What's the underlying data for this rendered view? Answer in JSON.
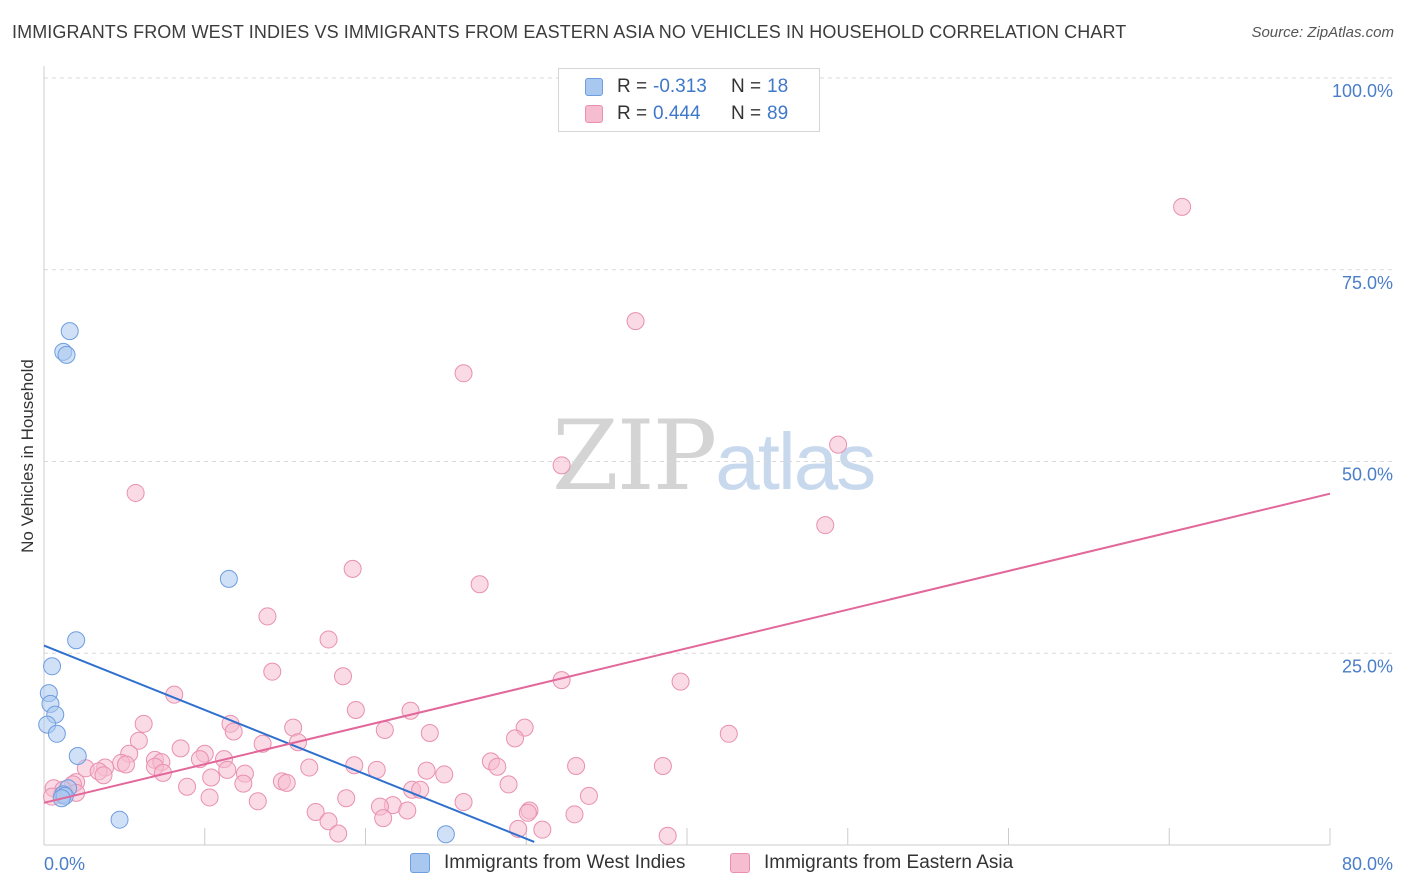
{
  "colors": {
    "blue_fill": "#a9c8f0",
    "blue_stroke": "#6e9de0",
    "blue_line": "#2f6fce",
    "pink_fill": "#f6bcd0",
    "pink_stroke": "#e990b0",
    "pink_line": "#e2679a",
    "axis_label": "#4a7ec9",
    "grid": "#d9d9d9"
  },
  "header": {
    "title": "IMMIGRANTS FROM WEST INDIES VS IMMIGRANTS FROM EASTERN ASIA NO VEHICLES IN HOUSEHOLD CORRELATION CHART",
    "source": "Source: ZipAtlas.com"
  },
  "watermark": {
    "zip": "ZIP",
    "atlas": "atlas"
  },
  "legend": {
    "rows": [
      {
        "r_label": "R =",
        "r_value": "-0.313",
        "n_label": "N =",
        "n_value": "18"
      },
      {
        "r_label": "R =",
        "r_value": "0.444",
        "n_label": "N =",
        "n_value": "89"
      }
    ]
  },
  "chart_data": {
    "type": "scatter",
    "title": "IMMIGRANTS FROM WEST INDIES VS IMMIGRANTS FROM EASTERN ASIA NO VEHICLES IN HOUSEHOLD CORRELATION CHART",
    "xlabel": "",
    "ylabel": "No Vehicles in Household",
    "xlim": [
      0,
      80
    ],
    "ylim": [
      0,
      100
    ],
    "x_tick_labels": [
      "0.0%",
      "80.0%"
    ],
    "y_tick_labels": [
      "25.0%",
      "50.0%",
      "75.0%",
      "100.0%"
    ],
    "y_ticks": [
      25,
      50,
      75,
      100
    ],
    "grid": true,
    "series": [
      {
        "name": "Immigrants from West Indies",
        "r": -0.313,
        "n": 18,
        "trend": {
          "x": [
            0,
            30.5
          ],
          "y": [
            26.0,
            0.4
          ]
        },
        "points": [
          [
            1.6,
            67.0
          ],
          [
            1.2,
            64.3
          ],
          [
            1.4,
            63.9
          ],
          [
            11.5,
            34.7
          ],
          [
            2.0,
            26.7
          ],
          [
            0.5,
            23.3
          ],
          [
            0.3,
            19.8
          ],
          [
            0.4,
            18.4
          ],
          [
            0.7,
            17.0
          ],
          [
            0.2,
            15.7
          ],
          [
            0.8,
            14.5
          ],
          [
            2.1,
            11.6
          ],
          [
            1.5,
            7.4
          ],
          [
            1.2,
            6.6
          ],
          [
            1.3,
            6.4
          ],
          [
            1.1,
            6.1
          ],
          [
            4.7,
            3.3
          ],
          [
            25.0,
            1.4
          ]
        ]
      },
      {
        "name": "Immigrants from Eastern Asia",
        "r": 0.444,
        "n": 89,
        "trend": {
          "x": [
            0,
            80
          ],
          "y": [
            5.5,
            45.8
          ]
        },
        "points": [
          [
            70.8,
            83.2
          ],
          [
            36.8,
            68.3
          ],
          [
            26.1,
            61.5
          ],
          [
            49.4,
            52.2
          ],
          [
            32.2,
            49.5
          ],
          [
            5.7,
            45.9
          ],
          [
            48.6,
            41.7
          ],
          [
            19.2,
            36.0
          ],
          [
            27.1,
            34.0
          ],
          [
            13.9,
            29.8
          ],
          [
            17.7,
            26.8
          ],
          [
            14.2,
            22.6
          ],
          [
            18.6,
            22.0
          ],
          [
            32.2,
            21.5
          ],
          [
            39.6,
            21.3
          ],
          [
            8.1,
            19.6
          ],
          [
            19.4,
            17.6
          ],
          [
            22.8,
            17.5
          ],
          [
            6.2,
            15.8
          ],
          [
            11.6,
            15.8
          ],
          [
            15.5,
            15.3
          ],
          [
            29.9,
            15.3
          ],
          [
            11.8,
            14.8
          ],
          [
            21.2,
            15.0
          ],
          [
            24.0,
            14.6
          ],
          [
            42.6,
            14.5
          ],
          [
            29.3,
            13.9
          ],
          [
            5.9,
            13.6
          ],
          [
            13.6,
            13.2
          ],
          [
            15.8,
            13.4
          ],
          [
            8.5,
            12.6
          ],
          [
            10.0,
            11.9
          ],
          [
            5.3,
            11.9
          ],
          [
            11.2,
            11.2
          ],
          [
            9.7,
            11.2
          ],
          [
            6.9,
            11.1
          ],
          [
            4.8,
            10.7
          ],
          [
            7.3,
            10.8
          ],
          [
            5.1,
            10.5
          ],
          [
            27.8,
            10.9
          ],
          [
            38.5,
            10.3
          ],
          [
            33.1,
            10.3
          ],
          [
            28.2,
            10.2
          ],
          [
            19.3,
            10.4
          ],
          [
            3.8,
            10.1
          ],
          [
            2.6,
            10.0
          ],
          [
            6.9,
            10.2
          ],
          [
            16.5,
            10.1
          ],
          [
            20.7,
            9.8
          ],
          [
            23.8,
            9.7
          ],
          [
            11.4,
            9.8
          ],
          [
            3.4,
            9.6
          ],
          [
            7.4,
            9.4
          ],
          [
            12.5,
            9.3
          ],
          [
            24.9,
            9.2
          ],
          [
            3.7,
            9.1
          ],
          [
            10.4,
            8.8
          ],
          [
            14.8,
            8.3
          ],
          [
            15.1,
            8.1
          ],
          [
            28.9,
            7.9
          ],
          [
            12.4,
            8.0
          ],
          [
            2.0,
            8.2
          ],
          [
            1.8,
            7.9
          ],
          [
            8.9,
            7.6
          ],
          [
            0.6,
            7.4
          ],
          [
            1.2,
            7.2
          ],
          [
            22.9,
            7.2
          ],
          [
            23.4,
            7.2
          ],
          [
            1.1,
            6.5
          ],
          [
            0.5,
            6.3
          ],
          [
            33.9,
            6.4
          ],
          [
            10.3,
            6.2
          ],
          [
            18.8,
            6.1
          ],
          [
            13.3,
            5.7
          ],
          [
            26.1,
            5.6
          ],
          [
            21.7,
            5.2
          ],
          [
            20.9,
            5.0
          ],
          [
            22.6,
            4.5
          ],
          [
            30.2,
            4.5
          ],
          [
            16.9,
            4.3
          ],
          [
            30.1,
            4.2
          ],
          [
            33.0,
            4.0
          ],
          [
            21.1,
            3.5
          ],
          [
            17.7,
            3.1
          ],
          [
            29.5,
            2.1
          ],
          [
            31.0,
            2.0
          ],
          [
            18.3,
            1.5
          ],
          [
            38.8,
            1.2
          ],
          [
            2.0,
            6.8
          ]
        ]
      }
    ]
  }
}
